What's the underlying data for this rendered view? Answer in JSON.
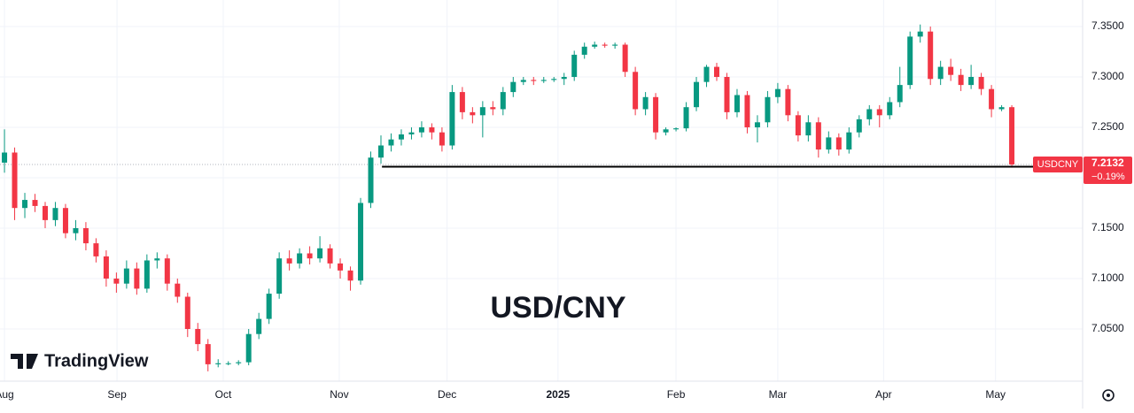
{
  "chart_data": {
    "type": "candlestick",
    "annotation": "USD/CNY",
    "watermark": "TradingView",
    "symbol": "USDCNY",
    "change": {
      "value": -0.19,
      "label": "−0.19%"
    },
    "up_color": "#089981",
    "down_color": "#f23645",
    "grid": true,
    "ylim": [
      7.0,
      7.3763
    ],
    "yticks": [
      {
        "value": 7.05,
        "label": "7.0500"
      },
      {
        "value": 7.1,
        "label": "7.1000"
      },
      {
        "value": 7.15,
        "label": "7.1500"
      },
      {
        "value": 7.2,
        "label": "7.2000"
      },
      {
        "value": 7.25,
        "label": "7.2500"
      },
      {
        "value": 7.3,
        "label": "7.3000"
      },
      {
        "value": 7.35,
        "label": "7.3500"
      }
    ],
    "xlim": [
      -0.44,
      105.96
    ],
    "xticks": [
      {
        "value": 0,
        "label": "Aug"
      },
      {
        "value": 11.06,
        "label": "Sep"
      },
      {
        "value": 21.5,
        "label": "Oct"
      },
      {
        "value": 32.9,
        "label": "Nov"
      },
      {
        "value": 43.5,
        "label": "Dec"
      },
      {
        "value": 54.4,
        "label": "2025"
      },
      {
        "value": 66,
        "label": "Feb"
      },
      {
        "value": 76,
        "label": "Mar"
      },
      {
        "value": 86.4,
        "label": "Apr"
      },
      {
        "value": 97.4,
        "label": "May"
      }
    ],
    "support_line": {
      "y": 7.211,
      "x_start": 37.1
    },
    "candles": [
      [
        7.215,
        7.248,
        7.205,
        7.225
      ],
      [
        7.225,
        7.23,
        7.158,
        7.17
      ],
      [
        7.17,
        7.185,
        7.16,
        7.178
      ],
      [
        7.178,
        7.184,
        7.166,
        7.172
      ],
      [
        7.172,
        7.176,
        7.15,
        7.158
      ],
      [
        7.158,
        7.176,
        7.152,
        7.17
      ],
      [
        7.17,
        7.174,
        7.14,
        7.145
      ],
      [
        7.145,
        7.158,
        7.138,
        7.15
      ],
      [
        7.15,
        7.156,
        7.128,
        7.135
      ],
      [
        7.135,
        7.14,
        7.116,
        7.122
      ],
      [
        7.122,
        7.128,
        7.092,
        7.1
      ],
      [
        7.1,
        7.106,
        7.086,
        7.095
      ],
      [
        7.095,
        7.118,
        7.09,
        7.11
      ],
      [
        7.11,
        7.116,
        7.084,
        7.09
      ],
      [
        7.09,
        7.124,
        7.086,
        7.118
      ],
      [
        7.118,
        7.126,
        7.11,
        7.12
      ],
      [
        7.12,
        7.124,
        7.088,
        7.095
      ],
      [
        7.095,
        7.1,
        7.076,
        7.082
      ],
      [
        7.082,
        7.086,
        7.042,
        7.05
      ],
      [
        7.05,
        7.056,
        7.028,
        7.035
      ],
      [
        7.035,
        7.04,
        7.008,
        7.015
      ],
      [
        7.015,
        7.02,
        7.012,
        7.016
      ],
      [
        7.016,
        7.018,
        7.014,
        7.016
      ],
      [
        7.016,
        7.019,
        7.014,
        7.017
      ],
      [
        7.017,
        7.05,
        7.014,
        7.045
      ],
      [
        7.045,
        7.066,
        7.04,
        7.06
      ],
      [
        7.06,
        7.09,
        7.055,
        7.085
      ],
      [
        7.085,
        7.126,
        7.08,
        7.12
      ],
      [
        7.12,
        7.128,
        7.108,
        7.115
      ],
      [
        7.115,
        7.13,
        7.11,
        7.125
      ],
      [
        7.125,
        7.132,
        7.114,
        7.12
      ],
      [
        7.12,
        7.142,
        7.116,
        7.13
      ],
      [
        7.13,
        7.134,
        7.11,
        7.115
      ],
      [
        7.115,
        7.12,
        7.1,
        7.108
      ],
      [
        7.108,
        7.112,
        7.088,
        7.098
      ],
      [
        7.098,
        7.18,
        7.094,
        7.175
      ],
      [
        7.175,
        7.226,
        7.17,
        7.22
      ],
      [
        7.22,
        7.242,
        7.214,
        7.232
      ],
      [
        7.232,
        7.244,
        7.226,
        7.238
      ],
      [
        7.238,
        7.248,
        7.232,
        7.243
      ],
      [
        7.243,
        7.25,
        7.238,
        7.245
      ],
      [
        7.245,
        7.256,
        7.24,
        7.25
      ],
      [
        7.25,
        7.254,
        7.238,
        7.245
      ],
      [
        7.245,
        7.25,
        7.226,
        7.232
      ],
      [
        7.232,
        7.292,
        7.228,
        7.285
      ],
      [
        7.285,
        7.29,
        7.258,
        7.265
      ],
      [
        7.265,
        7.27,
        7.254,
        7.262
      ],
      [
        7.262,
        7.276,
        7.24,
        7.27
      ],
      [
        7.27,
        7.276,
        7.262,
        7.268
      ],
      [
        7.268,
        7.29,
        7.262,
        7.285
      ],
      [
        7.285,
        7.3,
        7.28,
        7.295
      ],
      [
        7.295,
        7.3,
        7.292,
        7.297
      ],
      [
        7.297,
        7.3,
        7.292,
        7.296
      ],
      [
        7.296,
        7.3,
        7.294,
        7.297
      ],
      [
        7.297,
        7.3,
        7.295,
        7.298
      ],
      [
        7.298,
        7.304,
        7.292,
        7.3
      ],
      [
        7.3,
        7.326,
        7.296,
        7.322
      ],
      [
        7.322,
        7.334,
        7.318,
        7.33
      ],
      [
        7.33,
        7.335,
        7.328,
        7.332
      ],
      [
        7.332,
        7.334,
        7.329,
        7.331
      ],
      [
        7.331,
        7.334,
        7.328,
        7.332
      ],
      [
        7.332,
        7.334,
        7.3,
        7.305
      ],
      [
        7.305,
        7.31,
        7.262,
        7.268
      ],
      [
        7.268,
        7.285,
        7.262,
        7.28
      ],
      [
        7.28,
        7.284,
        7.238,
        7.245
      ],
      [
        7.245,
        7.25,
        7.242,
        7.248
      ],
      [
        7.248,
        7.25,
        7.246,
        7.249
      ],
      [
        7.249,
        7.275,
        7.246,
        7.27
      ],
      [
        7.27,
        7.3,
        7.266,
        7.295
      ],
      [
        7.295,
        7.312,
        7.29,
        7.31
      ],
      [
        7.31,
        7.314,
        7.296,
        7.3
      ],
      [
        7.3,
        7.304,
        7.258,
        7.265
      ],
      [
        7.265,
        7.288,
        7.26,
        7.282
      ],
      [
        7.282,
        7.286,
        7.244,
        7.25
      ],
      [
        7.25,
        7.262,
        7.235,
        7.255
      ],
      [
        7.255,
        7.286,
        7.25,
        7.28
      ],
      [
        7.28,
        7.294,
        7.274,
        7.288
      ],
      [
        7.288,
        7.292,
        7.256,
        7.262
      ],
      [
        7.262,
        7.266,
        7.236,
        7.242
      ],
      [
        7.242,
        7.262,
        7.236,
        7.255
      ],
      [
        7.255,
        7.26,
        7.22,
        7.228
      ],
      [
        7.228,
        7.246,
        7.224,
        7.24
      ],
      [
        7.24,
        7.244,
        7.222,
        7.228
      ],
      [
        7.228,
        7.25,
        7.224,
        7.245
      ],
      [
        7.245,
        7.262,
        7.24,
        7.258
      ],
      [
        7.258,
        7.272,
        7.252,
        7.268
      ],
      [
        7.268,
        7.272,
        7.25,
        7.262
      ],
      [
        7.262,
        7.28,
        7.258,
        7.275
      ],
      [
        7.275,
        7.31,
        7.27,
        7.292
      ],
      [
        7.292,
        7.345,
        7.288,
        7.34
      ],
      [
        7.34,
        7.352,
        7.334,
        7.345
      ],
      [
        7.345,
        7.35,
        7.292,
        7.298
      ],
      [
        7.298,
        7.316,
        7.292,
        7.31
      ],
      [
        7.31,
        7.318,
        7.296,
        7.302
      ],
      [
        7.302,
        7.308,
        7.286,
        7.292
      ],
      [
        7.292,
        7.312,
        7.288,
        7.3
      ],
      [
        7.3,
        7.304,
        7.282,
        7.288
      ],
      [
        7.288,
        7.292,
        7.26,
        7.268
      ],
      [
        7.268,
        7.272,
        7.266,
        7.27
      ],
      [
        7.27,
        7.272,
        7.21,
        7.2132
      ]
    ]
  }
}
